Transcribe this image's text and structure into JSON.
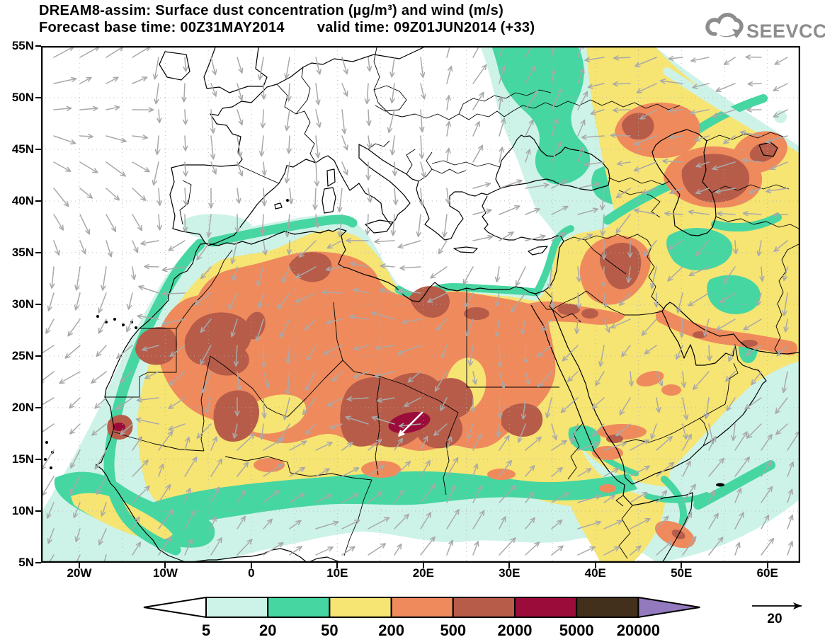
{
  "title": {
    "line1": "DREAM8-assim: Surface dust concentration (µg/m³) and wind (m/s)",
    "line2_left": "Forecast base time: 00Z31MAY2014",
    "line2_right": "valid time: 09Z01JUN2014 (+33)"
  },
  "logo": {
    "text": "SEEVCCC"
  },
  "axes": {
    "lat": [
      "55N",
      "50N",
      "45N",
      "40N",
      "35N",
      "30N",
      "25N",
      "20N",
      "15N",
      "10N",
      "5N"
    ],
    "lon": [
      "20W",
      "10W",
      "0",
      "10E",
      "20E",
      "30E",
      "40E",
      "50E",
      "60E"
    ]
  },
  "colorbar": {
    "labels": [
      "5",
      "20",
      "50",
      "200",
      "500",
      "2000",
      "5000",
      "20000"
    ],
    "segment_colors": [
      "#cdf3e8",
      "#46d6a2",
      "#f6e473",
      "#ef8a5d",
      "#b65c49",
      "#9c0c3a",
      "#43301c"
    ],
    "under_color": "#ffffff",
    "over_color": "#9379be"
  },
  "wind_reference": {
    "value": "20"
  },
  "chart_data": {
    "type": "contour_map",
    "title": "DREAM8-assim: Surface dust concentration (µg/m³) and wind (m/s)",
    "forecast_base_time": "00Z31MAY2014",
    "valid_time": "09Z01JUN2014",
    "lead_time": "+33",
    "variable": "surface dust concentration",
    "units": "µg/m³",
    "wind_units": "m/s",
    "wind_reference_vector": 20,
    "contour_levels": [
      5,
      20,
      50,
      200,
      500,
      2000,
      5000,
      20000
    ],
    "level_colors": {
      "below_5": "#ffffff",
      "5_20": "#cdf3e8",
      "20_50": "#46d6a2",
      "50_200": "#f6e473",
      "200_500": "#ef8a5d",
      "500_2000": "#b65c49",
      "2000_5000": "#9c0c3a",
      "5000_20000": "#43301c",
      "above_20000": "#9379be"
    },
    "map_extent": {
      "lat_min": "5N",
      "lat_max": "55N",
      "lon_min": "~24W",
      "lon_max": "~64E"
    },
    "grid": "dotted graticule every 5 degrees",
    "notable_features": [
      "peak concentration 2000-5000 µg/m³ over Chad/Niger region near 18E,18.5N (marked by white wind arrow)",
      "500-2000 µg/m³ cores over Mauritania/Western Sahara, northern Algeria-Tunisia, central Libya, Sudan, Iraq/Syria, and east of the Caspian Sea",
      "broad 50-500 µg/m³ dust plume covering the Sahara, Sahel, Arabian Peninsula and extending to the Caucasus/Caspian region",
      "clean air below 5 µg/m³ over most of Europe, the NE Atlantic, the central Mediterranean and the Gulf of Guinea",
      "southwesterly monsoon flow (arrows pointing NE) south of 15N; anticyclonic flow over the NE Atlantic"
    ]
  }
}
